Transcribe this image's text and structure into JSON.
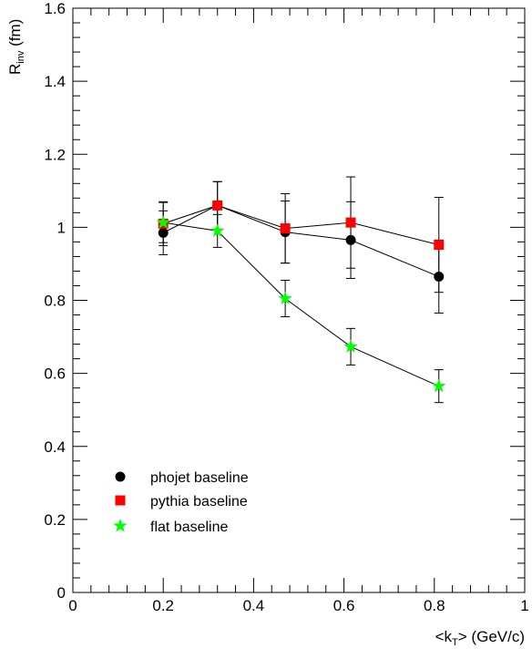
{
  "chart_data": {
    "type": "scatter",
    "xlabel": {
      "main": "<k",
      "sub": "T",
      "rest": "> (GeV/c)"
    },
    "ylabel": {
      "main": "R",
      "sub": "inv",
      "rest": " (fm)"
    },
    "xlim": [
      0,
      1
    ],
    "ylim": [
      0,
      1.6
    ],
    "x_ticks": [
      0,
      0.2,
      0.4,
      0.6,
      0.8,
      1
    ],
    "x_tick_labels": [
      "0",
      "0.2",
      "0.4",
      "0.6",
      "0.8",
      "1"
    ],
    "y_ticks": [
      0,
      0.2,
      0.4,
      0.6,
      0.8,
      1,
      1.2,
      1.4,
      1.6
    ],
    "y_tick_labels": [
      "0",
      "0.2",
      "0.4",
      "0.6",
      "0.8",
      "1",
      "1.2",
      "1.4",
      "1.6"
    ],
    "grid": false,
    "legend_position": "bottom-left",
    "series": [
      {
        "name": "phojet baseline",
        "marker": "circle",
        "color": "#000000",
        "x": [
          0.2,
          0.32,
          0.47,
          0.615,
          0.81
        ],
        "y": [
          0.985,
          1.06,
          0.987,
          0.965,
          0.865
        ],
        "err": [
          0.06,
          0.065,
          0.085,
          0.105,
          0.1
        ]
      },
      {
        "name": "pythia baseline",
        "marker": "square",
        "color": "#ff0000",
        "x": [
          0.2,
          0.32,
          0.47,
          0.615,
          0.81
        ],
        "y": [
          1.01,
          1.06,
          0.997,
          1.013,
          0.952
        ],
        "err": [
          0.06,
          0.065,
          0.095,
          0.125,
          0.13
        ]
      },
      {
        "name": "flat baseline",
        "marker": "star",
        "color": "#00ff00",
        "x": [
          0.2,
          0.32,
          0.47,
          0.615,
          0.81
        ],
        "y": [
          1.013,
          0.99,
          0.805,
          0.673,
          0.565
        ],
        "err": [
          0.055,
          0.045,
          0.05,
          0.05,
          0.045
        ]
      }
    ]
  }
}
